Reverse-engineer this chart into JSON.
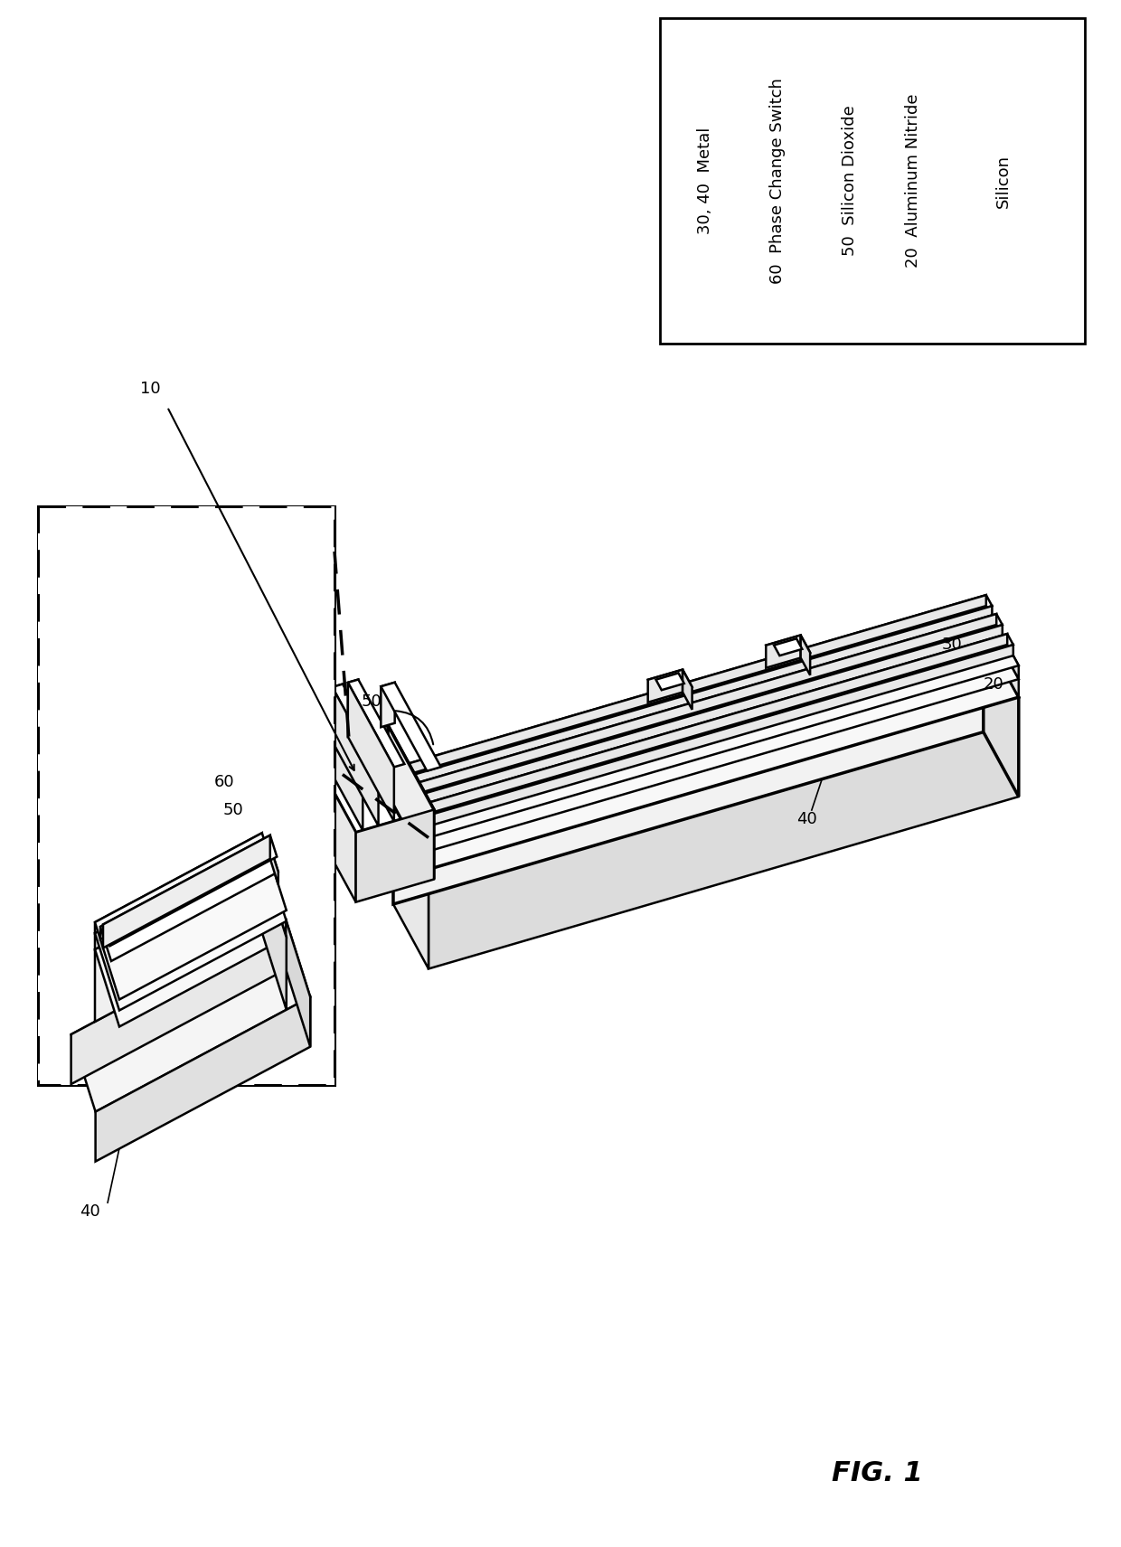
{
  "figure_label": "FIG. 1",
  "legend_entries": [
    {
      "number": "30, 40",
      "text": "Metal"
    },
    {
      "number": "60",
      "text": "Phase Change Switch"
    },
    {
      "number": "50",
      "text": "Silicon Dioxide"
    },
    {
      "number": "20",
      "text": "Aluminum Nitride"
    },
    {
      "number": "",
      "text": "Silicon"
    }
  ],
  "bg_color": "#ffffff",
  "line_color": "#000000",
  "lw": 1.8,
  "blw": 2.5
}
